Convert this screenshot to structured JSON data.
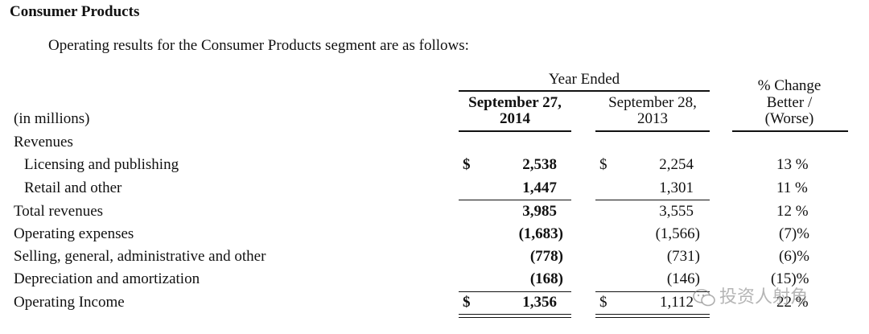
{
  "title": "Consumer Products",
  "intro": "Operating results for the Consumer Products segment are as follows:",
  "header": {
    "year_ended": "Year Ended",
    "col1_line1": "September 27,",
    "col1_line2": "2014",
    "col2_line1": "September 28,",
    "col2_line2": "2013",
    "change_line1": "% Change",
    "change_line2": "Better /",
    "change_line3": "(Worse)",
    "units": "(in millions)"
  },
  "rows": [
    {
      "label": "Revenues",
      "cur_sym": "",
      "cur": "",
      "prior_sym": "",
      "prior": "",
      "change": ""
    },
    {
      "label": "Licensing and publishing",
      "cur_sym": "$",
      "cur": "2,538",
      "prior_sym": "$",
      "prior": "2,254",
      "change": "13 %"
    },
    {
      "label": "Retail and other",
      "cur_sym": "",
      "cur": "1,447",
      "prior_sym": "",
      "prior": "1,301",
      "change": "11 %"
    },
    {
      "label": "Total revenues",
      "cur_sym": "",
      "cur": "3,985",
      "prior_sym": "",
      "prior": "3,555",
      "change": "12 %"
    },
    {
      "label": "Operating expenses",
      "cur_sym": "",
      "cur": "(1,683)",
      "prior_sym": "",
      "prior": "(1,566)",
      "change": "(7)%"
    },
    {
      "label": "Selling, general, administrative and other",
      "cur_sym": "",
      "cur": "(778)",
      "prior_sym": "",
      "prior": "(731)",
      "change": "(6)%"
    },
    {
      "label": "Depreciation and amortization",
      "cur_sym": "",
      "cur": "(168)",
      "prior_sym": "",
      "prior": "(146)",
      "change": "(15)%"
    },
    {
      "label": "Operating Income",
      "cur_sym": "$",
      "cur": "1,356",
      "prior_sym": "$",
      "prior": "1,112",
      "change": "22 %"
    }
  ],
  "watermark": "投资人射角"
}
